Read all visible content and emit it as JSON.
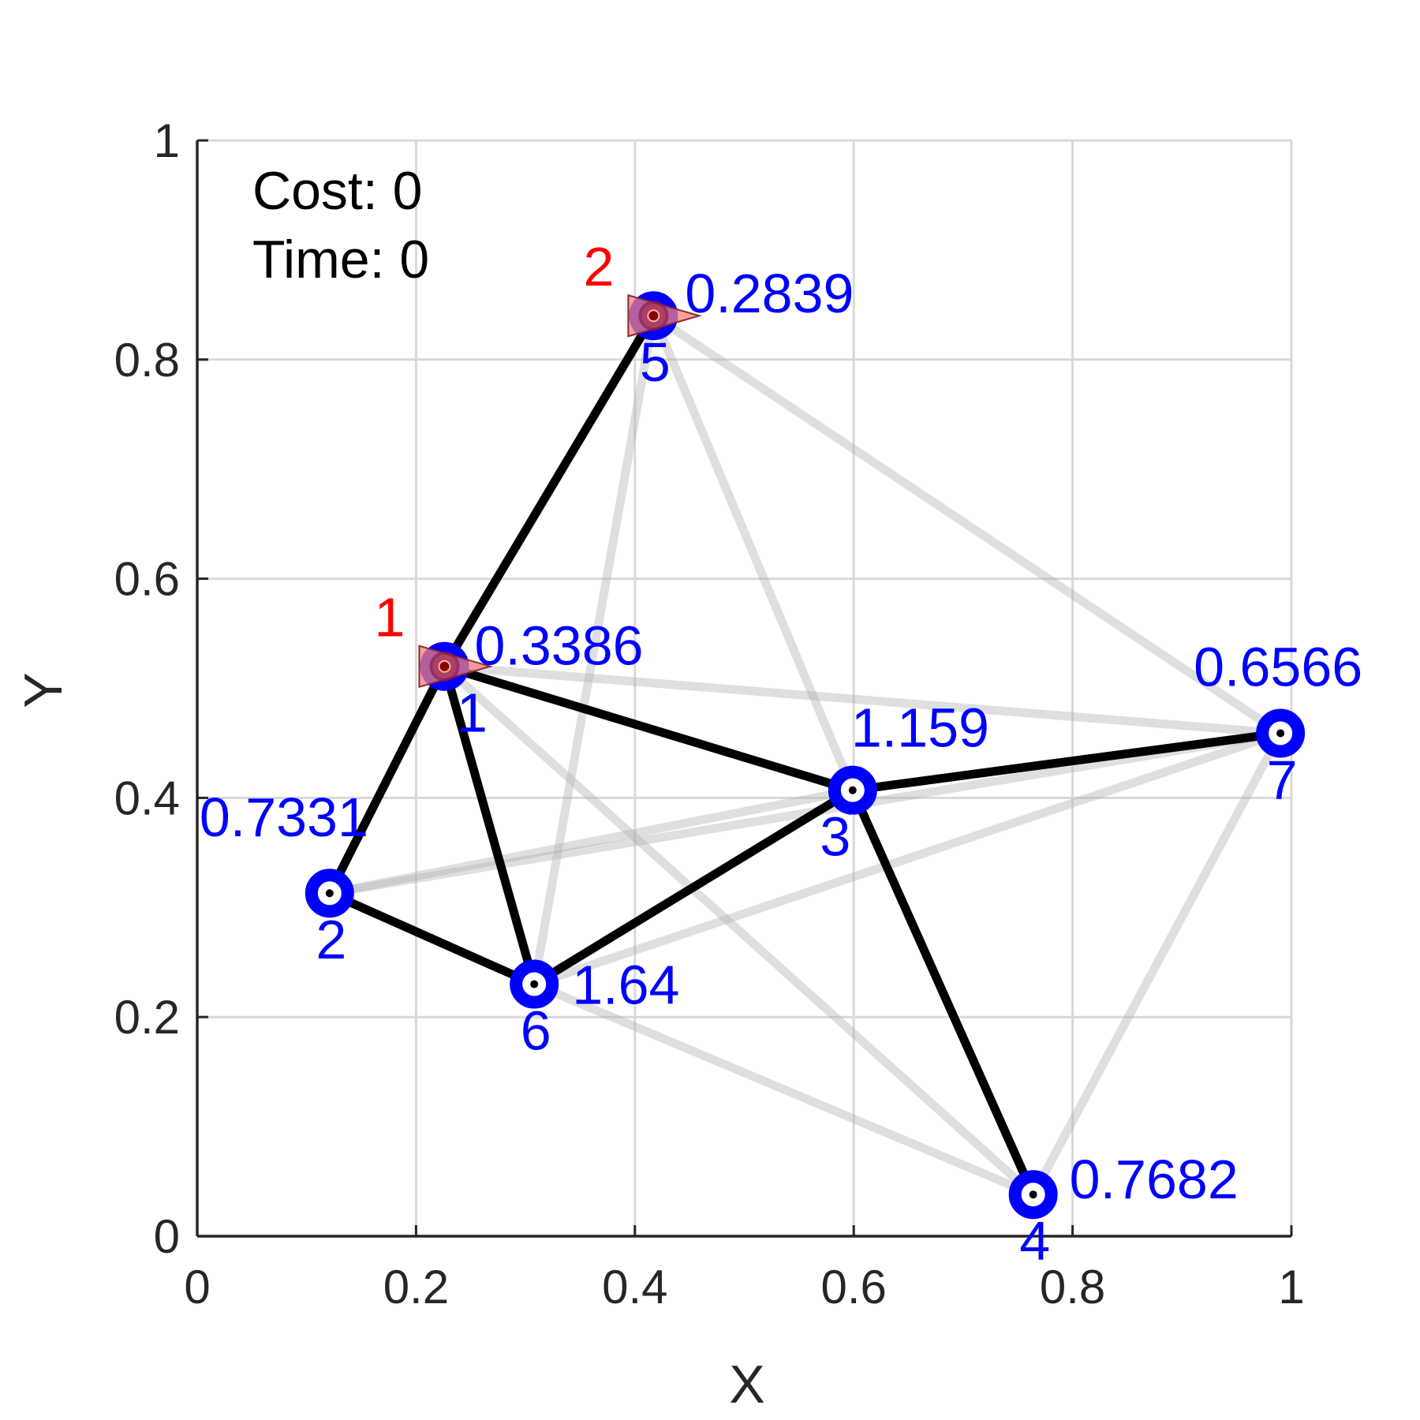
{
  "info": {
    "cost_text": "Cost: 0",
    "time_text": "Time: 0"
  },
  "colors": {
    "node": "#0000ff",
    "agent_label": "#ff0000",
    "agent_fill": "#f08080",
    "agent_dot": "#8b0000",
    "active_edge": "#000000",
    "inactive_edge": "#b0b0b0",
    "grid": "#d9d9d9",
    "axis": "#262626"
  },
  "chart_data": {
    "type": "scatter",
    "title": "",
    "xlabel": "X",
    "ylabel": "Y",
    "xlim": [
      0,
      1
    ],
    "ylim": [
      0,
      1
    ],
    "xticks": [
      0,
      0.2,
      0.4,
      0.6,
      0.8,
      1
    ],
    "yticks": [
      0,
      0.2,
      0.4,
      0.6,
      0.8,
      1
    ],
    "xtick_labels": [
      "0",
      "0.2",
      "0.4",
      "0.6",
      "0.8",
      "1"
    ],
    "ytick_labels": [
      "0",
      "0.2",
      "0.4",
      "0.6",
      "0.8",
      "1"
    ],
    "grid": true,
    "nodes": [
      {
        "id": 1,
        "index_label": "1",
        "x": 0.226,
        "y": 0.52,
        "value_label": "0.3386"
      },
      {
        "id": 2,
        "index_label": "2",
        "x": 0.121,
        "y": 0.313,
        "value_label": "0.7331"
      },
      {
        "id": 3,
        "index_label": "3",
        "x": 0.599,
        "y": 0.407,
        "value_label": "1.159"
      },
      {
        "id": 4,
        "index_label": "4",
        "x": 0.764,
        "y": 0.038,
        "value_label": "0.7682"
      },
      {
        "id": 5,
        "index_label": "5",
        "x": 0.417,
        "y": 0.84,
        "value_label": "0.2839"
      },
      {
        "id": 6,
        "index_label": "6",
        "x": 0.308,
        "y": 0.23,
        "value_label": "1.64"
      },
      {
        "id": 7,
        "index_label": "7",
        "x": 0.99,
        "y": 0.459,
        "value_label": "0.6566"
      }
    ],
    "active_edges": [
      [
        1,
        5
      ],
      [
        1,
        2
      ],
      [
        1,
        6
      ],
      [
        1,
        3
      ],
      [
        2,
        6
      ],
      [
        6,
        3
      ],
      [
        3,
        7
      ],
      [
        3,
        4
      ]
    ],
    "inactive_edges": [
      [
        5,
        6
      ],
      [
        5,
        3
      ],
      [
        5,
        7
      ],
      [
        1,
        7
      ],
      [
        1,
        4
      ],
      [
        2,
        3
      ],
      [
        2,
        7
      ],
      [
        6,
        4
      ],
      [
        6,
        7
      ],
      [
        7,
        4
      ]
    ],
    "agents": [
      {
        "label": "1",
        "node": 1
      },
      {
        "label": "2",
        "node": 5
      }
    ]
  }
}
